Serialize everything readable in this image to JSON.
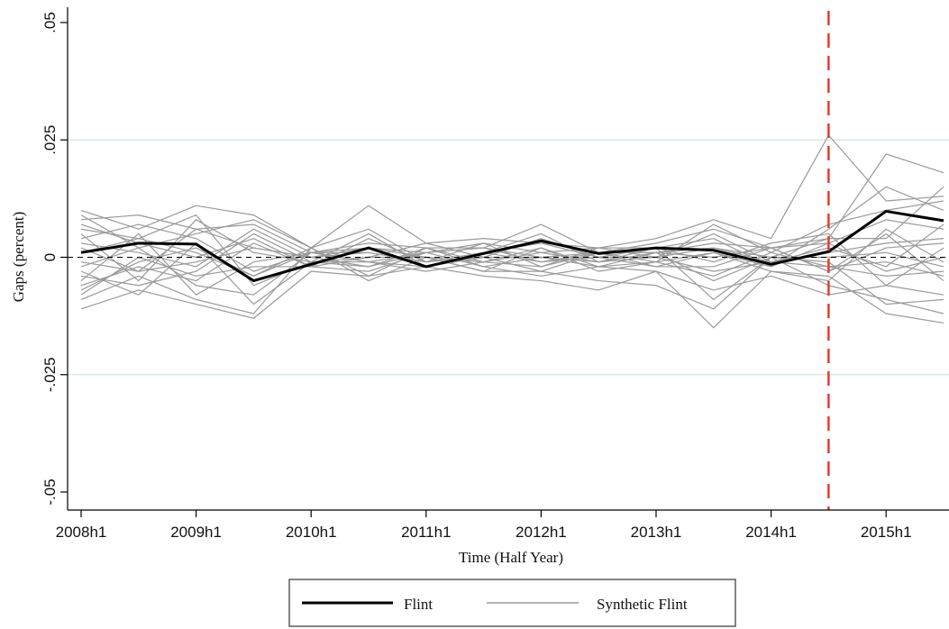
{
  "chart_data": {
    "type": "line",
    "xlabel": "Time (Half Year)",
    "ylabel": "Gaps (percent)",
    "x": [
      "2008h1",
      "2008h2",
      "2009h1",
      "2009h2",
      "2010h1",
      "2010h2",
      "2011h1",
      "2011h2",
      "2012h1",
      "2012h2",
      "2013h1",
      "2013h2",
      "2014h1",
      "2014h2",
      "2015h1",
      "2015h2"
    ],
    "x_ticks": [
      "2008h1",
      "2009h1",
      "2010h1",
      "2011h1",
      "2012h1",
      "2013h1",
      "2014h1",
      "2015h1"
    ],
    "y_ticks": [
      ".05",
      ".025",
      "0",
      "-.025",
      "-.05"
    ],
    "ylim": [
      -0.05,
      0.05
    ],
    "grid_lines_at": [
      0.025,
      -0.025
    ],
    "treatment_line_at": "2014h2",
    "legend_position": "bottom",
    "series": [
      {
        "name": "Flint",
        "color": "#000000",
        "values": [
          0.001,
          0.003,
          0.0028,
          -0.005,
          -0.0015,
          0.002,
          -0.002,
          0.0008,
          0.0035,
          0.0008,
          0.002,
          0.0015,
          -0.0015,
          0.0012,
          0.0098,
          0.0078
        ]
      },
      {
        "name": "Synthetic Flint",
        "color": "#9a9a9a",
        "note_style": "placebo",
        "lines": [
          [
            0.01,
            0.006,
            0.011,
            0.009,
            0.002,
            0.011,
            0.003,
            0.004,
            0.003,
            0.002,
            0.004,
            0.008,
            0.004,
            0.026,
            0.012,
            0.013
          ],
          [
            -0.011,
            -0.007,
            -0.01,
            -0.013,
            -0.003,
            -0.004,
            -0.002,
            -0.004,
            -0.005,
            -0.007,
            -0.003,
            -0.015,
            -0.003,
            -0.004,
            -0.012,
            -0.014
          ],
          [
            0.008,
            0.009,
            0.006,
            0.007,
            0.001,
            0.003,
            0.002,
            0.002,
            0.007,
            0.001,
            0.003,
            0.006,
            0.002,
            0.004,
            0.022,
            0.018
          ],
          [
            -0.009,
            -0.004,
            -0.009,
            -0.012,
            0.002,
            -0.005,
            0.0,
            -0.003,
            -0.003,
            -0.005,
            -0.006,
            -0.011,
            0.0,
            -0.006,
            -0.009,
            -0.012
          ],
          [
            0.006,
            0.004,
            0.009,
            -0.006,
            -0.001,
            0.005,
            -0.002,
            0.001,
            0.005,
            -0.001,
            0.002,
            0.004,
            -0.002,
            0.006,
            0.015,
            0.01
          ],
          [
            -0.006,
            -0.002,
            -0.005,
            0.003,
            -0.002,
            -0.003,
            0.001,
            -0.002,
            -0.004,
            -0.002,
            -0.003,
            -0.007,
            -0.004,
            -0.008,
            -0.006,
            -0.008
          ],
          [
            0.004,
            0.007,
            0.004,
            -0.003,
            0.001,
            0.002,
            0.001,
            0.002,
            0.0,
            0.001,
            0.001,
            0.003,
            0.002,
            0.003,
            0.008,
            0.006
          ],
          [
            -0.004,
            -0.006,
            -0.003,
            0.005,
            -0.001,
            -0.001,
            -0.003,
            -0.001,
            -0.002,
            0.001,
            -0.001,
            -0.004,
            0.001,
            -0.002,
            -0.004,
            -0.003
          ],
          [
            0.002,
            -0.003,
            0.006,
            0.002,
            0.0,
            -0.002,
            0.002,
            -0.001,
            0.002,
            -0.002,
            0.001,
            0.002,
            -0.001,
            0.001,
            0.003,
            0.004
          ],
          [
            -0.002,
            0.002,
            -0.006,
            -0.008,
            0.001,
            0.001,
            -0.001,
            0.001,
            -0.001,
            0.0,
            -0.002,
            -0.002,
            0.002,
            -0.003,
            0.005,
            -0.005
          ],
          [
            0.007,
            0.003,
            0.0,
            0.004,
            -0.002,
            0.004,
            -0.001,
            0.003,
            0.001,
            0.002,
            0.0,
            0.005,
            -0.001,
            0.002,
            -0.002,
            0.007
          ],
          [
            -0.007,
            -0.001,
            0.002,
            -0.004,
            0.002,
            -0.004,
            0.002,
            -0.002,
            0.0,
            -0.001,
            0.001,
            -0.005,
            0.0,
            0.0,
            0.001,
            -0.002
          ],
          [
            0.005,
            -0.005,
            0.008,
            0.001,
            -0.001,
            0.0,
            0.003,
            0.0,
            0.004,
            0.0,
            0.002,
            -0.001,
            0.003,
            0.005,
            -0.006,
            0.002
          ],
          [
            -0.005,
            0.005,
            -0.008,
            -0.001,
            0.001,
            -0.001,
            -0.002,
            0.0,
            -0.003,
            0.001,
            -0.002,
            0.001,
            -0.003,
            -0.005,
            0.006,
            -0.001
          ],
          [
            0.003,
            0.001,
            -0.002,
            0.006,
            0.0,
            0.002,
            0.0,
            -0.003,
            0.002,
            -0.003,
            -0.001,
            0.007,
            0.001,
            0.007,
            0.01,
            0.012
          ],
          [
            -0.003,
            -0.008,
            0.003,
            -0.01,
            -0.001,
            -0.002,
            0.001,
            0.003,
            -0.002,
            0.002,
            0.002,
            -0.009,
            0.0,
            -0.001,
            -0.01,
            -0.009
          ],
          [
            0.009,
            0.002,
            0.005,
            0.008,
            0.002,
            0.006,
            -0.001,
            0.001,
            0.003,
            0.0,
            0.0,
            0.002,
            0.0,
            0.004,
            0.004,
            0.015
          ],
          [
            -0.008,
            0.0,
            -0.004,
            -0.002,
            -0.002,
            0.0,
            0.0,
            -0.001,
            0.001,
            -0.001,
            0.0,
            -0.003,
            -0.001,
            -0.002,
            -0.001,
            -0.004
          ],
          [
            0.001,
            0.004,
            0.001,
            -0.004,
            0.001,
            -0.001,
            0.001,
            0.002,
            -0.001,
            0.001,
            0.001,
            0.0,
            0.002,
            -0.003,
            0.002,
            0.003
          ],
          [
            -0.001,
            -0.003,
            -0.001,
            0.002,
            0.0,
            0.001,
            -0.001,
            0.0,
            0.0,
            -0.002,
            -0.001,
            0.001,
            -0.002,
            0.003,
            -0.003,
            0.0
          ]
        ]
      }
    ]
  }
}
